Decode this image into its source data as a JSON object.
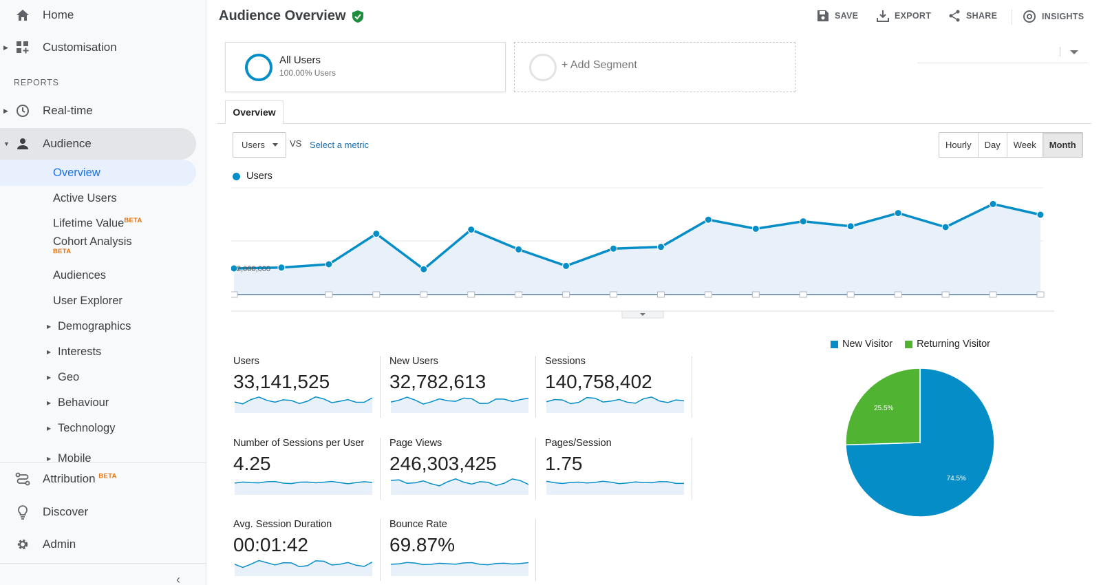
{
  "sidebar": {
    "home": "Home",
    "customisation": "Customisation",
    "reports_heading": "REPORTS",
    "realtime": "Real-time",
    "audience": "Audience",
    "audience_items": [
      {
        "label": "Overview"
      },
      {
        "label": "Active Users"
      },
      {
        "label": "Lifetime Value",
        "badge": "BETA"
      },
      {
        "label": "Cohort Analysis",
        "badge": "BETA"
      },
      {
        "label": "Audiences"
      },
      {
        "label": "User Explorer"
      },
      {
        "label": "Demographics"
      },
      {
        "label": "Interests"
      },
      {
        "label": "Geo"
      },
      {
        "label": "Behaviour"
      },
      {
        "label": "Technology"
      },
      {
        "label": "Mobile"
      }
    ],
    "attribution": "Attribution",
    "attribution_badge": "BETA",
    "discover": "Discover",
    "admin": "Admin"
  },
  "header": {
    "title": "Audience Overview",
    "save": "SAVE",
    "export": "EXPORT",
    "share": "SHARE",
    "insights": "INSIGHTS"
  },
  "segments": {
    "all_users": "All Users",
    "all_users_sub": "100.00% Users",
    "add": "+ Add Segment"
  },
  "tabs": {
    "overview": "Overview"
  },
  "controls": {
    "metric": "Users",
    "vs": "VS",
    "select_metric": "Select a metric",
    "granularity": [
      "Hourly",
      "Day",
      "Week",
      "Month"
    ],
    "active_granularity": "Month"
  },
  "chart_data": [
    {
      "type": "area",
      "series": [
        {
          "name": "Users",
          "values": [
            2000000,
            2010000,
            2050000,
            2420000,
            1990000,
            2470000,
            2230000,
            2030000,
            2240000,
            2260000,
            2590000,
            2480000,
            2570000,
            2510000,
            2670000,
            2500000,
            2780000,
            2650000
          ]
        }
      ],
      "y_tick_label": "2,000,000",
      "color": "#058dc7",
      "fill": "#e8f1fa"
    },
    {
      "type": "pie",
      "categories": [
        "New Visitor",
        "Returning Visitor"
      ],
      "values": [
        74.5,
        25.5
      ],
      "labels": [
        "74.5%",
        "25.5%"
      ],
      "colors": [
        "#058dc7",
        "#50b432"
      ]
    }
  ],
  "metrics": [
    {
      "name": "Users",
      "value": "33,141,525"
    },
    {
      "name": "New Users",
      "value": "32,782,613"
    },
    {
      "name": "Sessions",
      "value": "140,758,402"
    },
    {
      "name": "Number of Sessions per User",
      "value": "4.25"
    },
    {
      "name": "Page Views",
      "value": "246,303,425"
    },
    {
      "name": "Pages/Session",
      "value": "1.75"
    },
    {
      "name": "Avg. Session Duration",
      "value": "00:01:42"
    },
    {
      "name": "Bounce Rate",
      "value": "69.87%"
    }
  ],
  "colors": {
    "accent": "#058dc7",
    "secondary": "#50b432",
    "beta": "#e8710a",
    "link": "#1a6fb3"
  }
}
